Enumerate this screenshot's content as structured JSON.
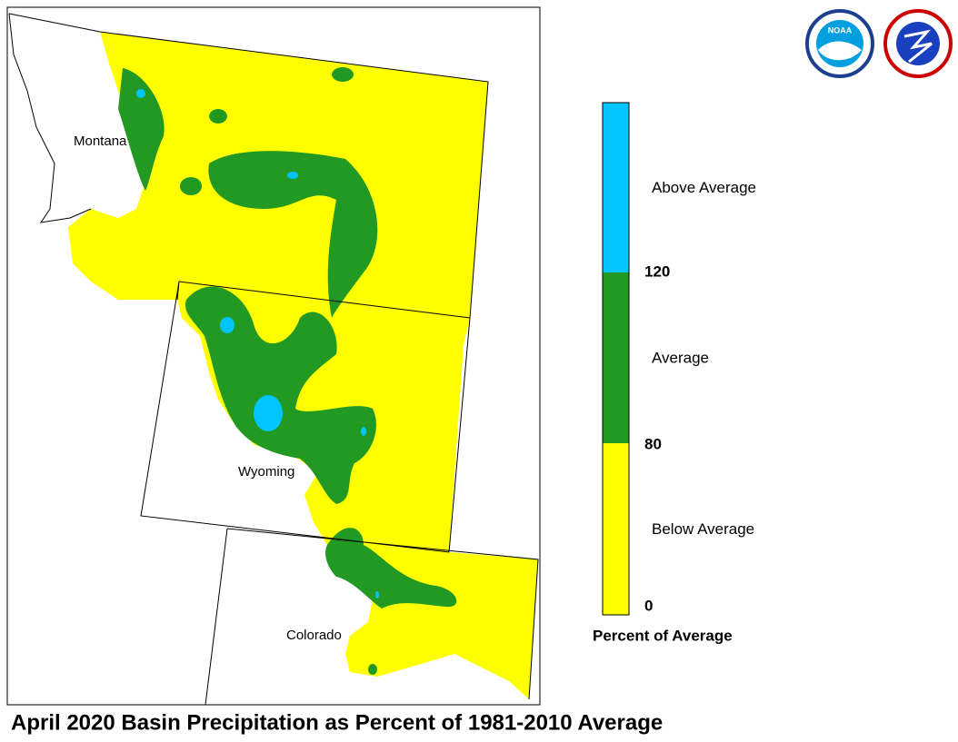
{
  "title": "April 2020 Basin Precipitation as Percent of 1981-2010 Average",
  "map": {
    "labels": [
      "Montana",
      "Wyoming",
      "Colorado"
    ]
  },
  "logos": [
    "NOAA"
  ],
  "legend": {
    "title": "Percent of Average",
    "classes": [
      {
        "label": "Above Average",
        "color": "#00c5ff"
      },
      {
        "label": "Average",
        "color": "#229922"
      },
      {
        "label": "Below Average",
        "color": "#ffff00"
      }
    ],
    "ticks": [
      120,
      80,
      0
    ]
  }
}
